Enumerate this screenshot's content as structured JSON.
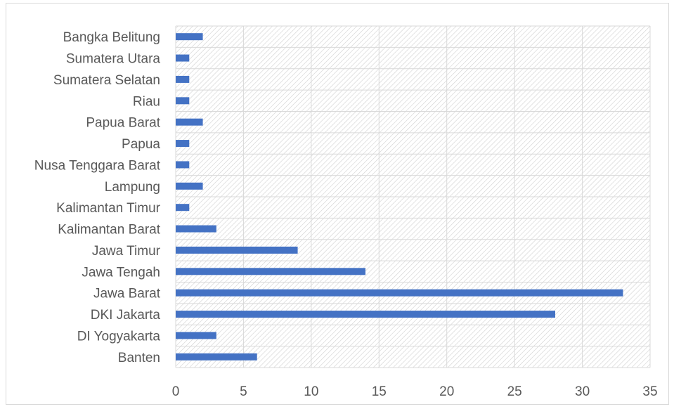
{
  "chart_data": {
    "type": "bar",
    "orientation": "horizontal",
    "categories": [
      "Bangka Belitung",
      "Sumatera Utara",
      "Sumatera Selatan",
      "Riau",
      "Papua Barat",
      "Papua",
      "Nusa Tenggara Barat",
      "Lampung",
      "Kalimantan Timur",
      "Kalimantan Barat",
      "Jawa Timur",
      "Jawa Tengah",
      "Jawa Barat",
      "DKI Jakarta",
      "DI Yogyakarta",
      "Banten"
    ],
    "values": [
      2,
      1,
      1,
      1,
      2,
      1,
      1,
      2,
      1,
      3,
      9,
      14,
      33,
      28,
      3,
      6
    ],
    "xlim": [
      0,
      35
    ],
    "xticks": [
      0,
      5,
      10,
      15,
      20,
      25,
      30,
      35
    ],
    "grid": true,
    "legend": "none",
    "colors": {
      "bar": "#4472c4",
      "grid": "#d9d9d9",
      "hatch": "#d0d0d0",
      "text": "#595959"
    }
  }
}
